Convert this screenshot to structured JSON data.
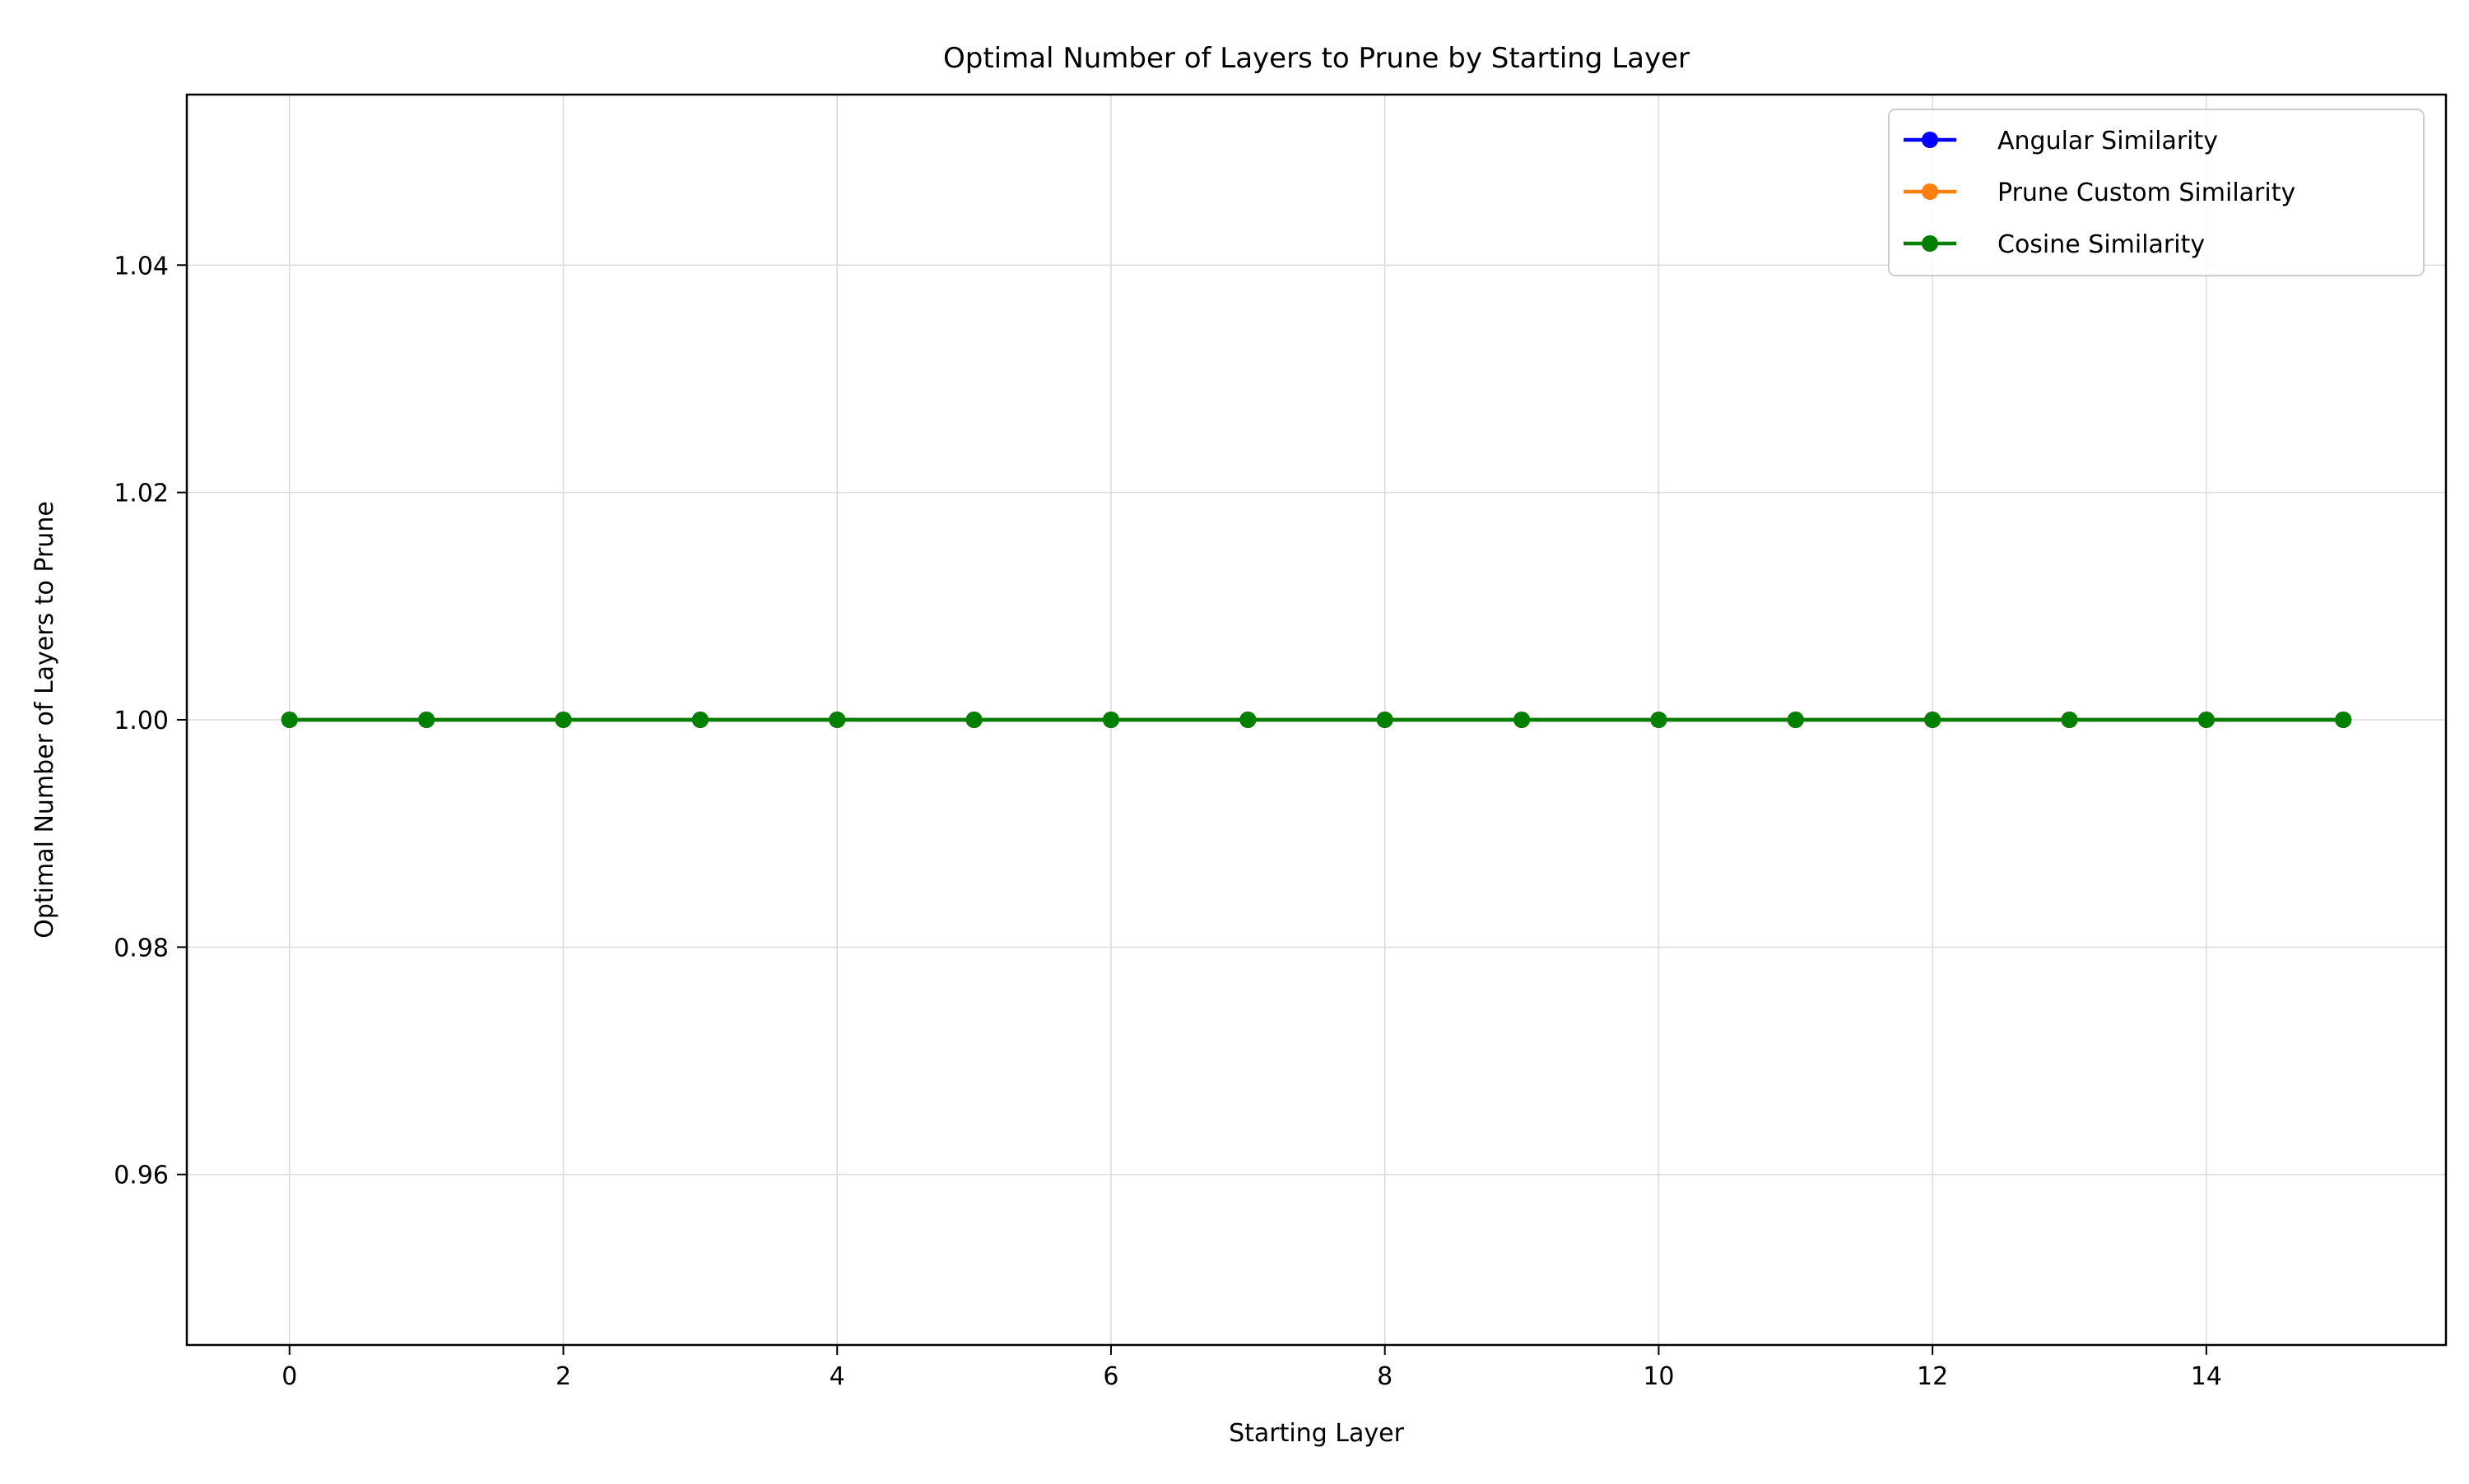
{
  "chart_data": {
    "type": "line",
    "title": "Optimal Number of Layers to Prune by Starting Layer",
    "xlabel": "Starting Layer",
    "ylabel": "Optimal Number of Layers to Prune",
    "x": [
      0,
      1,
      2,
      3,
      4,
      5,
      6,
      7,
      8,
      9,
      10,
      11,
      12,
      13,
      14,
      15
    ],
    "xlim": [
      -0.75,
      15.75
    ],
    "ylim": [
      0.945,
      1.055
    ],
    "xticks": [
      0,
      2,
      4,
      6,
      8,
      10,
      12,
      14
    ],
    "xtick_labels": [
      "0",
      "2",
      "4",
      "6",
      "8",
      "10",
      "12",
      "14"
    ],
    "yticks": [
      0.96,
      0.98,
      1.0,
      1.02,
      1.04
    ],
    "ytick_labels": [
      "0.96",
      "0.98",
      "1.00",
      "1.02",
      "1.04"
    ],
    "grid": true,
    "legend_position": "top-right",
    "series": [
      {
        "name": "Angular Similarity",
        "color": "#0000ff",
        "values": [
          1,
          1,
          1,
          1,
          1,
          1,
          1,
          1,
          1,
          1,
          1,
          1,
          1,
          1,
          1,
          1
        ]
      },
      {
        "name": "Prune Custom Similarity",
        "color": "#ff7f0e",
        "values": [
          1,
          1,
          1,
          1,
          1,
          1,
          1,
          1,
          1,
          1,
          1,
          1,
          1,
          1,
          1,
          1
        ]
      },
      {
        "name": "Cosine Similarity",
        "color": "#008000",
        "values": [
          1,
          1,
          1,
          1,
          1,
          1,
          1,
          1,
          1,
          1,
          1,
          1,
          1,
          1,
          1,
          1
        ]
      }
    ]
  }
}
